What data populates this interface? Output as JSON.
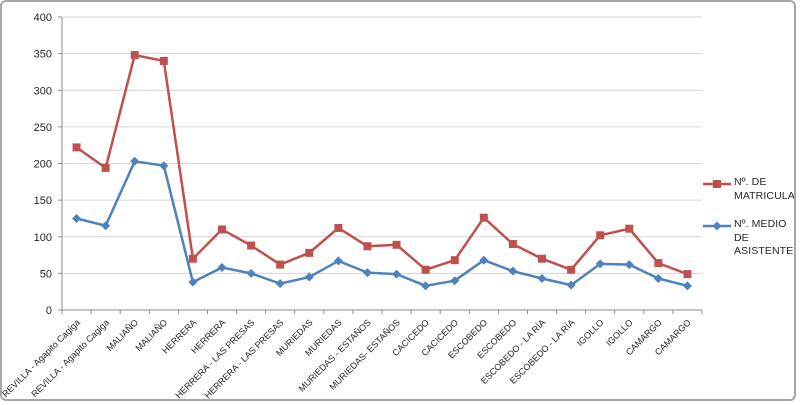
{
  "chart_data": {
    "type": "line",
    "title": "",
    "categories": [
      "REVILLA - Agapito Cagiga",
      "REVILLA - Agapito Cagiga",
      "MALIAÑO",
      "MALIAÑO",
      "HERRERA",
      "HERRERA",
      "HERRERA - LAS PRESAS",
      "HERRERA - LAS PRESAS",
      "MURIEDAS",
      "MURIEDAS",
      "MURIEDAS - ESTAÑOS",
      "MURIEDAS- ESTAÑOS",
      "CACICEDO",
      "CACICEDO",
      "ESCOBEDO",
      "ESCOBEDO",
      "ESCOBEDO - LA RÍA",
      "ESCOBEDO - LA RÍA",
      "IGOLLO",
      "IGOLLO",
      "CAMARGO",
      "CAMARGO"
    ],
    "series": [
      {
        "name": "Nº. DE MATRICULAS",
        "color": "#c0504d",
        "marker": "square",
        "values": [
          222,
          194,
          348,
          340,
          70,
          110,
          88,
          62,
          78,
          112,
          87,
          89,
          55,
          68,
          126,
          90,
          70,
          55,
          102,
          111,
          64,
          49
        ]
      },
      {
        "name": "Nº. MEDIO DE ASISTENTES",
        "color": "#4f81bd",
        "marker": "diamond",
        "values": [
          125,
          115,
          203,
          197,
          38,
          58,
          50,
          36,
          45,
          67,
          51,
          49,
          33,
          40,
          68,
          53,
          43,
          34,
          63,
          62,
          43,
          33
        ]
      }
    ],
    "xlabel": "",
    "ylabel": "",
    "ylim": [
      0,
      400
    ],
    "yticks": [
      0,
      50,
      100,
      150,
      200,
      250,
      300,
      350,
      400
    ],
    "grid": "horizontal",
    "legend_position": "right"
  },
  "colors": {
    "gridline": "#d6d6d6",
    "axis": "#8e8e8e",
    "tick_text": "#262626",
    "frame_border": "#a6a6a6",
    "background": "#ffffff"
  }
}
